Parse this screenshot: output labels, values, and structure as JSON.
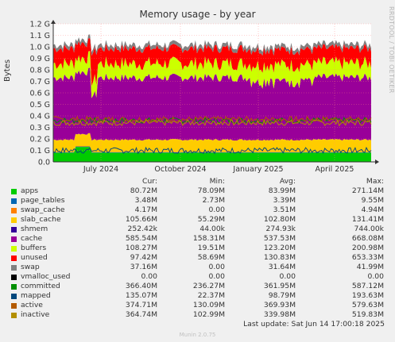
{
  "chart_data": {
    "type": "area",
    "title": "Memory usage - by year",
    "ylabel": "Bytes",
    "side_text": "RRDTOOL / TOBI OETIKER",
    "ylim": [
      0,
      1.2
    ],
    "y_ticks": [
      "0.0",
      "0.1 G",
      "0.2 G",
      "0.3 G",
      "0.4 G",
      "0.5 G",
      "0.6 G",
      "0.7 G",
      "0.8 G",
      "0.9 G",
      "1.0 G",
      "1.1 G",
      "1.2 G"
    ],
    "x_ticks": [
      "July 2024",
      "October 2024",
      "January 2025",
      "April 2025"
    ],
    "x_tick_pos": [
      0.15,
      0.4,
      0.645,
      0.885
    ],
    "x_range": [
      "2024-05-14",
      "2025-06-14"
    ],
    "stack_approx_gb": [
      {
        "name": "apps",
        "value": 0.08,
        "color": "#00cc00"
      },
      {
        "name": "page_tables",
        "value": 0.0035,
        "color": "#0066b3"
      },
      {
        "name": "swap_cache",
        "value": 0.004,
        "color": "#ff8000"
      },
      {
        "name": "slab_cache",
        "value": 0.105,
        "color": "#ffcc00"
      },
      {
        "name": "shmem",
        "value": 0.0003,
        "color": "#330099"
      },
      {
        "name": "cache",
        "value": 0.54,
        "color": "#990099"
      },
      {
        "name": "buffers",
        "value": 0.123,
        "color": "#ccff00"
      },
      {
        "name": "unused",
        "value": 0.13,
        "color": "#ff0000"
      },
      {
        "name": "swap",
        "value": 0.032,
        "color": "#808080"
      }
    ],
    "line_series": [
      {
        "name": "committed",
        "value": 0.36,
        "color": "#008f00"
      },
      {
        "name": "mapped",
        "value": 0.099,
        "color": "#00487d"
      },
      {
        "name": "active",
        "value": 0.37,
        "color": "#b35a00"
      },
      {
        "name": "inactive",
        "value": 0.34,
        "color": "#b38f00"
      }
    ]
  },
  "legend": {
    "headers": {
      "cur": "Cur:",
      "min": "Min:",
      "avg": "Avg:",
      "max": "Max:"
    },
    "rows": [
      {
        "name": "apps",
        "color": "#00cc00",
        "cur": "80.72M",
        "min": "78.09M",
        "avg": "83.99M",
        "max": "271.14M"
      },
      {
        "name": "page_tables",
        "color": "#0066b3",
        "cur": "3.48M",
        "min": "2.73M",
        "avg": "3.39M",
        "max": "9.55M"
      },
      {
        "name": "swap_cache",
        "color": "#ff8000",
        "cur": "4.17M",
        "min": "0.00",
        "avg": "3.51M",
        "max": "4.94M"
      },
      {
        "name": "slab_cache",
        "color": "#ffcc00",
        "cur": "105.66M",
        "min": "55.29M",
        "avg": "102.80M",
        "max": "131.41M"
      },
      {
        "name": "shmem",
        "color": "#330099",
        "cur": "252.42k",
        "min": "44.00k",
        "avg": "274.93k",
        "max": "744.00k"
      },
      {
        "name": "cache",
        "color": "#990099",
        "cur": "585.54M",
        "min": "158.31M",
        "avg": "537.53M",
        "max": "668.08M"
      },
      {
        "name": "buffers",
        "color": "#ccff00",
        "cur": "108.27M",
        "min": "19.51M",
        "avg": "123.20M",
        "max": "200.98M"
      },
      {
        "name": "unused",
        "color": "#ff0000",
        "cur": "97.42M",
        "min": "58.69M",
        "avg": "130.83M",
        "max": "653.33M"
      },
      {
        "name": "swap",
        "color": "#808080",
        "cur": "37.16M",
        "min": "0.00",
        "avg": "31.64M",
        "max": "41.99M"
      },
      {
        "name": "vmalloc_used",
        "color": "#000000",
        "cur": "0.00",
        "min": "0.00",
        "avg": "0.00",
        "max": "0.00"
      },
      {
        "name": "committed",
        "color": "#008f00",
        "cur": "366.40M",
        "min": "236.27M",
        "avg": "361.95M",
        "max": "587.12M"
      },
      {
        "name": "mapped",
        "color": "#00487d",
        "cur": "135.07M",
        "min": "22.37M",
        "avg": "98.79M",
        "max": "193.63M"
      },
      {
        "name": "active",
        "color": "#b35a00",
        "cur": "374.71M",
        "min": "130.09M",
        "avg": "369.93M",
        "max": "579.63M"
      },
      {
        "name": "inactive",
        "color": "#b38f00",
        "cur": "364.74M",
        "min": "102.99M",
        "avg": "339.98M",
        "max": "519.83M"
      }
    ]
  },
  "footer": {
    "last_update": "Last update: Sat Jun 14 17:00:18 2025",
    "version": "Munin 2.0.75"
  }
}
